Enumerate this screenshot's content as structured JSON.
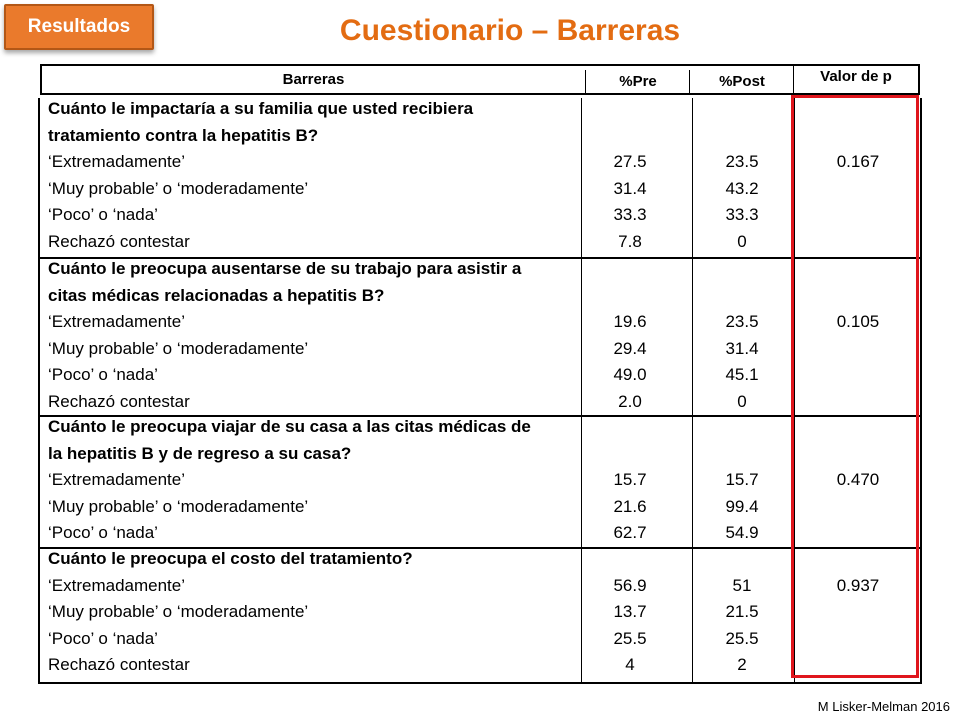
{
  "badge": "Resultados",
  "title": "Cuestionario – Barreras",
  "headers": {
    "barreras": "Barreras",
    "pre": "%Pre",
    "post": "%Post",
    "p": "Valor de p"
  },
  "sections": [
    {
      "question": [
        "Cuánto le impactaría a su familia que usted recibiera",
        "tratamiento contra la hepatitis B?"
      ],
      "p": "0.167",
      "rows": [
        {
          "label": "‘Extremadamente’",
          "pre": "27.5",
          "post": "23.5"
        },
        {
          "label": "‘Muy probable’ o ‘moderadamente’",
          "pre": "31.4",
          "post": "43.2"
        },
        {
          "label": "‘Poco’ o ‘nada’",
          "pre": "33.3",
          "post": "33.3"
        },
        {
          "label": "Rechazó contestar",
          "pre": "7.8",
          "post": "0"
        }
      ]
    },
    {
      "question": [
        "Cuánto le preocupa ausentarse de su trabajo para asistir a",
        "citas médicas relacionadas a hepatitis B?"
      ],
      "p": "0.105",
      "rows": [
        {
          "label": "‘Extremadamente’",
          "pre": "19.6",
          "post": "23.5"
        },
        {
          "label": "‘Muy probable’ o ‘moderadamente’",
          "pre": "29.4",
          "post": "31.4"
        },
        {
          "label": "‘Poco’ o ‘nada’",
          "pre": "49.0",
          "post": "45.1"
        },
        {
          "label": "Rechazó contestar",
          "pre": "2.0",
          "post": "0"
        }
      ]
    },
    {
      "question": [
        "Cuánto le preocupa viajar de su casa a las citas médicas de",
        "la hepatitis B y de regreso a su casa?"
      ],
      "p": "0.470",
      "rows": [
        {
          "label": "‘Extremadamente’",
          "pre": "15.7",
          "post": "15.7"
        },
        {
          "label": "‘Muy probable’ o ‘moderadamente’",
          "pre": "21.6",
          "post": "99.4"
        },
        {
          "label": "‘Poco’ o ‘nada’",
          "pre": "62.7",
          "post": "54.9"
        }
      ]
    },
    {
      "question": [
        "Cuánto le preocupa el costo del tratamiento?"
      ],
      "p": "0.937",
      "rows": [
        {
          "label": "‘Extremadamente’",
          "pre": "56.9",
          "post": "51"
        },
        {
          "label": "‘Muy probable’ o ‘moderadamente’",
          "pre": "13.7",
          "post": "21.5"
        },
        {
          "label": "‘Poco’ o ‘nada’",
          "pre": "25.5",
          "post": "25.5"
        },
        {
          "label": "Rechazó contestar",
          "pre": "4",
          "post": "2"
        }
      ]
    }
  ],
  "credit": "M Lisker-Melman 2016"
}
